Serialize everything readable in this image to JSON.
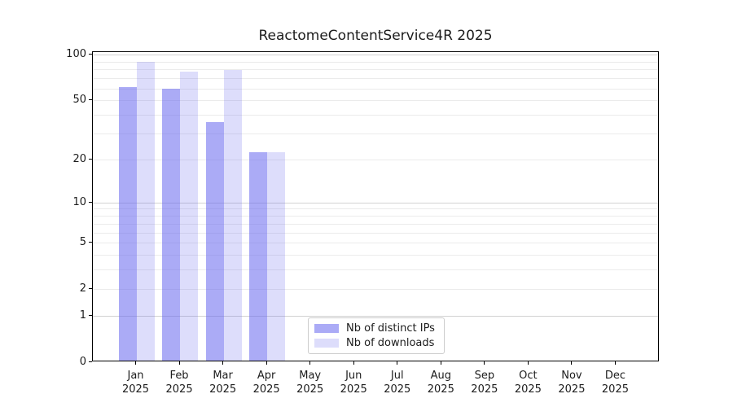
{
  "chart_data": {
    "type": "bar",
    "title": "ReactomeContentService4R 2025",
    "year_label": "2025",
    "categories": [
      "Jan",
      "Feb",
      "Mar",
      "Apr",
      "May",
      "Jun",
      "Jul",
      "Aug",
      "Sep",
      "Oct",
      "Nov",
      "Dec"
    ],
    "series": [
      {
        "name": "Nb of distinct IPs",
        "slug": "distinct-ips",
        "base_color": "#6666ee",
        "alpha": 0.55,
        "values": [
          60,
          59,
          35,
          22,
          0,
          0,
          0,
          0,
          0,
          0,
          0,
          0
        ]
      },
      {
        "name": "Nb of downloads",
        "slug": "downloads",
        "base_color": "#6666ee",
        "alpha": 0.22,
        "values": [
          88,
          76,
          78,
          22,
          0,
          0,
          0,
          0,
          0,
          0,
          0,
          0
        ]
      }
    ],
    "y_axis": {
      "scale": "log1p",
      "ticks": [
        0,
        1,
        2,
        5,
        10,
        20,
        50,
        100
      ],
      "max": 105,
      "grid_minor": [
        2,
        3,
        4,
        5,
        6,
        7,
        8,
        9,
        20,
        30,
        40,
        50,
        60,
        70,
        80,
        90
      ],
      "grid_major": [
        1,
        10,
        100
      ]
    },
    "legend": {
      "entries": [
        "Nb of distinct IPs",
        "Nb of downloads"
      ],
      "position": "lower center"
    },
    "colors": {
      "spine": "#000000",
      "grid_minor": "#ebebeb",
      "grid_major": "#d2d2d2",
      "text": "#1c1c1c",
      "legend_border": "#cccccc",
      "background": "#ffffff"
    }
  }
}
